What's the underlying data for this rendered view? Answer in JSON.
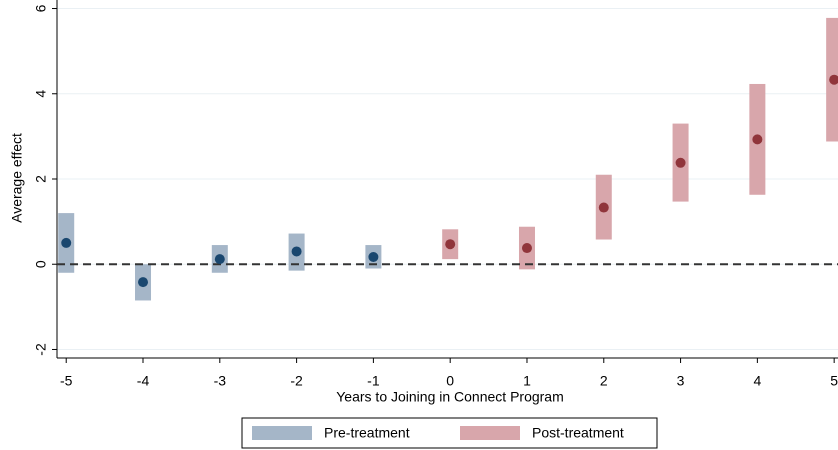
{
  "chart_data": {
    "type": "event-study",
    "x_label": "Years to Joining in Connect Program",
    "y_label": "Average effect",
    "xlim": [
      -5.12,
      5.05
    ],
    "ylim": [
      -2.2,
      6.2
    ],
    "xticks": [
      -5,
      -4,
      -3,
      -2,
      -1,
      0,
      1,
      2,
      3,
      4,
      5
    ],
    "yticks": [
      -2,
      0,
      2,
      4,
      6
    ],
    "grid": true,
    "reference_line": 0,
    "legend": "bottom",
    "series": [
      {
        "name": "Pre-treatment",
        "color": "#a5b6c8",
        "marker_color": "#1a476f",
        "x": [
          -5,
          -4,
          -3,
          -2,
          -1
        ],
        "values": [
          0.5,
          -0.42,
          0.12,
          0.3,
          0.17
        ],
        "lower": [
          -0.2,
          -0.85,
          -0.2,
          -0.15,
          -0.1
        ],
        "upper": [
          1.2,
          0.0,
          0.45,
          0.72,
          0.45
        ]
      },
      {
        "name": "Post-treatment",
        "color": "#d8a6ab",
        "marker_color": "#90353b",
        "x": [
          0,
          1,
          2,
          3,
          4,
          5
        ],
        "values": [
          0.47,
          0.38,
          1.33,
          2.38,
          2.93,
          4.33
        ],
        "lower": [
          0.12,
          -0.12,
          0.58,
          1.47,
          1.63,
          2.88
        ],
        "upper": [
          0.82,
          0.88,
          2.1,
          3.3,
          4.23,
          5.78
        ]
      }
    ]
  }
}
